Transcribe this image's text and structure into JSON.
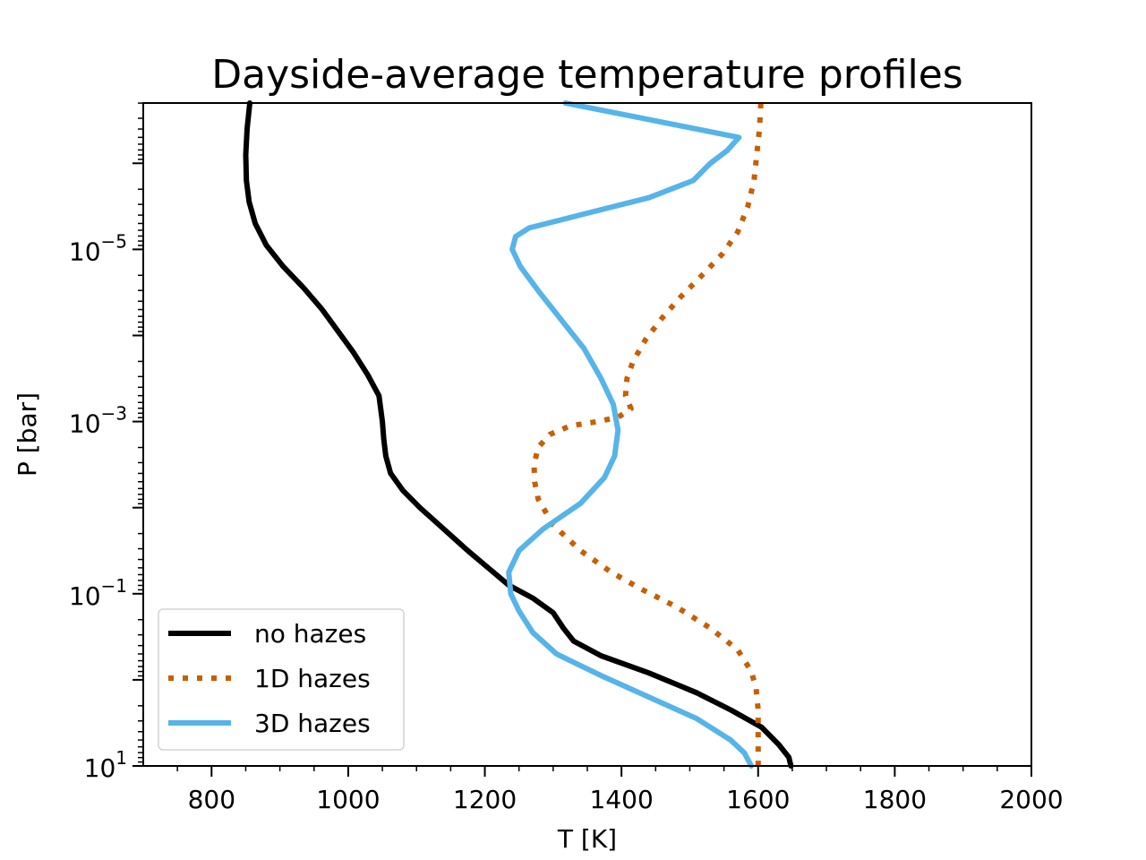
{
  "chart_data": {
    "type": "line",
    "title": "Dayside-average temperature profiles",
    "xlabel": "T [K]",
    "ylabel": "P [bar]",
    "xlim": [
      700,
      2000
    ],
    "ylim_log10": [
      1,
      -6.7
    ],
    "y_scale": "log",
    "y_inverted": true,
    "grid": false,
    "legend_position": "lower-left",
    "x_ticks": [
      800,
      1000,
      1200,
      1400,
      1600,
      1800,
      2000
    ],
    "x_tick_labels": [
      "800",
      "1000",
      "1200",
      "1400",
      "1600",
      "1800",
      "2000"
    ],
    "y_ticks_log10": [
      -5,
      -3,
      -1,
      1
    ],
    "y_tick_labels": [
      {
        "base": "10",
        "exp": "−5"
      },
      {
        "base": "10",
        "exp": "−3"
      },
      {
        "base": "10",
        "exp": "−1"
      },
      {
        "base": "10",
        "exp": "1"
      }
    ],
    "series": [
      {
        "name": "no hazes",
        "color": "#000000",
        "style": "solid",
        "points": [
          [
            856,
            -6.7
          ],
          [
            852,
            -6.4
          ],
          [
            850,
            -6.1
          ],
          [
            851,
            -5.8
          ],
          [
            855,
            -5.55
          ],
          [
            864,
            -5.3
          ],
          [
            880,
            -5.05
          ],
          [
            905,
            -4.8
          ],
          [
            935,
            -4.55
          ],
          [
            962,
            -4.3
          ],
          [
            985,
            -4.05
          ],
          [
            1008,
            -3.8
          ],
          [
            1028,
            -3.55
          ],
          [
            1045,
            -3.3
          ],
          [
            1050,
            -3.0
          ],
          [
            1052,
            -2.8
          ],
          [
            1055,
            -2.6
          ],
          [
            1062,
            -2.4
          ],
          [
            1080,
            -2.2
          ],
          [
            1105,
            -2.0
          ],
          [
            1140,
            -1.75
          ],
          [
            1175,
            -1.5
          ],
          [
            1205,
            -1.3
          ],
          [
            1235,
            -1.1
          ],
          [
            1270,
            -0.95
          ],
          [
            1300,
            -0.78
          ],
          [
            1315,
            -0.6
          ],
          [
            1330,
            -0.45
          ],
          [
            1370,
            -0.28
          ],
          [
            1440,
            -0.08
          ],
          [
            1510,
            0.15
          ],
          [
            1560,
            0.35
          ],
          [
            1605,
            0.55
          ],
          [
            1630,
            0.75
          ],
          [
            1645,
            0.9
          ],
          [
            1648,
            1.0
          ]
        ]
      },
      {
        "name": "1D hazes",
        "color": "#c85f00",
        "style": "dotted",
        "points": [
          [
            1604,
            -6.7
          ],
          [
            1602,
            -6.4
          ],
          [
            1598,
            -6.1
          ],
          [
            1594,
            -5.8
          ],
          [
            1585,
            -5.5
          ],
          [
            1570,
            -5.2
          ],
          [
            1548,
            -4.95
          ],
          [
            1518,
            -4.7
          ],
          [
            1487,
            -4.45
          ],
          [
            1459,
            -4.2
          ],
          [
            1435,
            -3.95
          ],
          [
            1417,
            -3.7
          ],
          [
            1408,
            -3.5
          ],
          [
            1406,
            -3.3
          ],
          [
            1414,
            -3.15
          ],
          [
            1395,
            -3.05
          ],
          [
            1365,
            -3.0
          ],
          [
            1325,
            -2.95
          ],
          [
            1295,
            -2.85
          ],
          [
            1278,
            -2.7
          ],
          [
            1272,
            -2.5
          ],
          [
            1273,
            -2.3
          ],
          [
            1278,
            -2.1
          ],
          [
            1300,
            -1.8
          ],
          [
            1340,
            -1.5
          ],
          [
            1385,
            -1.25
          ],
          [
            1430,
            -1.05
          ],
          [
            1480,
            -0.85
          ],
          [
            1530,
            -0.6
          ],
          [
            1570,
            -0.35
          ],
          [
            1590,
            -0.1
          ],
          [
            1597,
            0.1
          ],
          [
            1600,
            0.35
          ],
          [
            1600,
            0.6
          ],
          [
            1600,
            1.0
          ]
        ]
      },
      {
        "name": "3D hazes",
        "color": "#56b4e9",
        "style": "solid",
        "points": [
          [
            1318,
            -6.7
          ],
          [
            1445,
            -6.5
          ],
          [
            1572,
            -6.3
          ],
          [
            1555,
            -6.15
          ],
          [
            1530,
            -6.0
          ],
          [
            1505,
            -5.8
          ],
          [
            1440,
            -5.6
          ],
          [
            1340,
            -5.4
          ],
          [
            1265,
            -5.25
          ],
          [
            1245,
            -5.15
          ],
          [
            1240,
            -5.0
          ],
          [
            1252,
            -4.8
          ],
          [
            1280,
            -4.5
          ],
          [
            1310,
            -4.2
          ],
          [
            1345,
            -3.85
          ],
          [
            1370,
            -3.5
          ],
          [
            1388,
            -3.2
          ],
          [
            1395,
            -2.9
          ],
          [
            1390,
            -2.6
          ],
          [
            1375,
            -2.35
          ],
          [
            1340,
            -2.05
          ],
          [
            1285,
            -1.75
          ],
          [
            1250,
            -1.5
          ],
          [
            1235,
            -1.25
          ],
          [
            1238,
            -1.0
          ],
          [
            1250,
            -0.8
          ],
          [
            1270,
            -0.55
          ],
          [
            1305,
            -0.3
          ],
          [
            1370,
            -0.05
          ],
          [
            1440,
            0.2
          ],
          [
            1510,
            0.45
          ],
          [
            1560,
            0.7
          ],
          [
            1580,
            0.85
          ],
          [
            1590,
            1.0
          ]
        ]
      }
    ]
  }
}
